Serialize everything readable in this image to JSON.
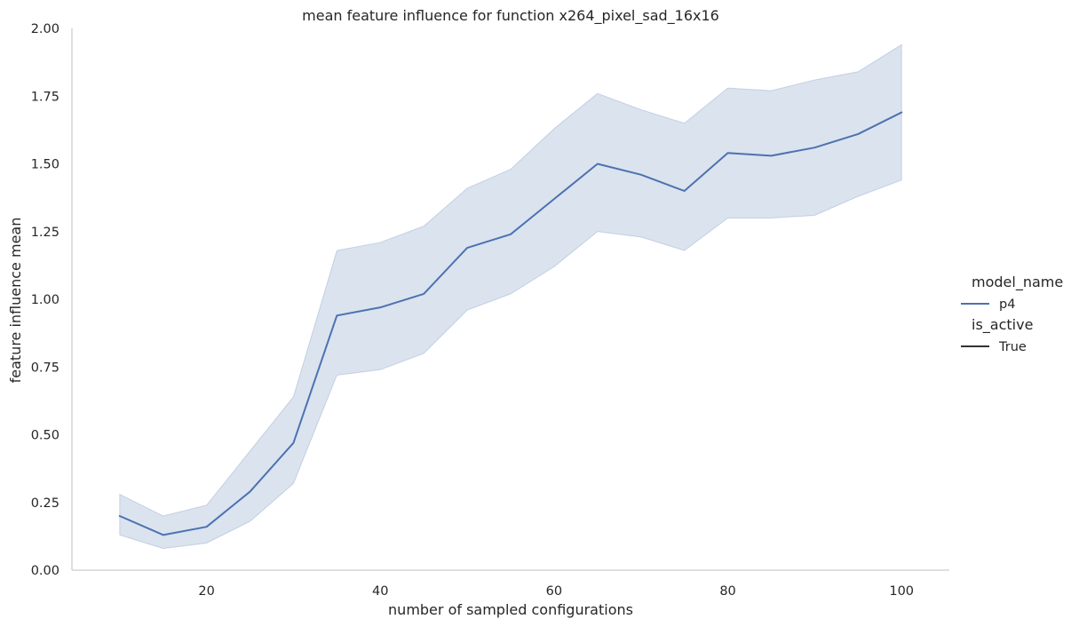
{
  "chart_data": {
    "type": "line",
    "title": "mean feature influence for function x264_pixel_sad_16x16",
    "xlabel": "number of sampled configurations",
    "ylabel": "feature influence mean",
    "xlim": [
      4.5,
      105.5
    ],
    "ylim": [
      0,
      2.0
    ],
    "xticks": [
      20,
      40,
      60,
      80,
      100
    ],
    "yticks": [
      "0.00",
      "0.25",
      "0.50",
      "0.75",
      "1.00",
      "1.25",
      "1.50",
      "1.75",
      "2.00"
    ],
    "grid": false,
    "legend_placement": "right",
    "legend": [
      {
        "title": "model_name",
        "entries": [
          {
            "label": "p4",
            "color": "#4c72b0"
          }
        ]
      },
      {
        "title": "is_active",
        "entries": [
          {
            "label": "True",
            "color": "#333333"
          }
        ]
      }
    ],
    "series": [
      {
        "name": "p4",
        "color": "#4c72b0",
        "band_color": "#4c72b0",
        "x": [
          10,
          15,
          20,
          25,
          30,
          35,
          40,
          45,
          50,
          55,
          60,
          65,
          70,
          75,
          80,
          85,
          90,
          95,
          100
        ],
        "y": [
          0.2,
          0.13,
          0.16,
          0.29,
          0.47,
          0.94,
          0.97,
          1.02,
          1.19,
          1.24,
          1.37,
          1.5,
          1.46,
          1.4,
          1.54,
          1.53,
          1.56,
          1.61,
          1.69
        ],
        "lower": [
          0.13,
          0.08,
          0.1,
          0.18,
          0.32,
          0.72,
          0.74,
          0.8,
          0.96,
          1.02,
          1.12,
          1.25,
          1.23,
          1.18,
          1.3,
          1.3,
          1.31,
          1.38,
          1.44
        ],
        "upper": [
          0.28,
          0.2,
          0.24,
          0.44,
          0.64,
          1.18,
          1.21,
          1.27,
          1.41,
          1.48,
          1.63,
          1.76,
          1.7,
          1.65,
          1.78,
          1.77,
          1.81,
          1.84,
          1.94
        ]
      }
    ]
  }
}
